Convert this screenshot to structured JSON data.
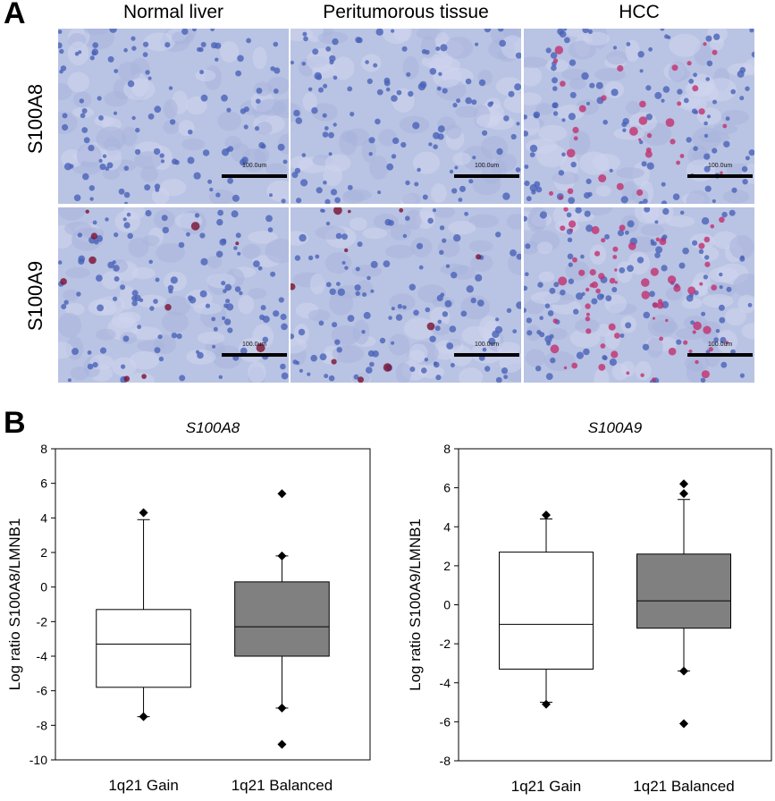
{
  "panel_a": {
    "letter": "A",
    "columns": [
      "Normal liver",
      "Peritumorous tissue",
      "HCC"
    ],
    "rows": [
      "S100A8",
      "S100A9"
    ],
    "scale_label": "100.0um",
    "stain_colors": {
      "background": "#b9c3e3",
      "nuclei": "#4a63b8",
      "positive": "#c2306e"
    }
  },
  "panel_b": {
    "letter": "B"
  },
  "chart_data": [
    {
      "type": "box",
      "title": "S100A8",
      "ylabel": "Log ratio S100A8/LMNB1",
      "ylim": [
        -10,
        8
      ],
      "yticks": [
        -10,
        -8,
        -6,
        -4,
        -2,
        0,
        2,
        4,
        6,
        8
      ],
      "categories": [
        "1q21 Gain",
        "1q21 Balanced"
      ],
      "boxes": [
        {
          "name": "1q21 Gain",
          "fill": "#ffffff",
          "whisker_low": -7.5,
          "q1": -5.8,
          "median": -3.3,
          "q3": -1.3,
          "whisker_high": 3.9,
          "outliers": [
            4.3,
            -7.5
          ]
        },
        {
          "name": "1q21 Balanced",
          "fill": "#808080",
          "whisker_low": -7.0,
          "q1": -4.0,
          "median": -2.3,
          "q3": 0.3,
          "whisker_high": 1.8,
          "outliers": [
            5.4,
            1.8,
            -7.0,
            -9.1
          ]
        }
      ],
      "grid": false
    },
    {
      "type": "box",
      "title": "S100A9",
      "ylabel": "Log ratio S100A9/LMNB1",
      "ylim": [
        -8,
        8
      ],
      "yticks": [
        -8,
        -6,
        -4,
        -2,
        0,
        2,
        4,
        6,
        8
      ],
      "categories": [
        "1q21 Gain",
        "1q21 Balanced"
      ],
      "boxes": [
        {
          "name": "1q21 Gain",
          "fill": "#ffffff",
          "whisker_low": -5.0,
          "q1": -3.3,
          "median": -1.0,
          "q3": 2.7,
          "whisker_high": 4.4,
          "outliers": [
            4.6,
            -5.1
          ]
        },
        {
          "name": "1q21 Balanced",
          "fill": "#808080",
          "whisker_low": -3.4,
          "q1": -1.2,
          "median": 0.2,
          "q3": 2.6,
          "whisker_high": 5.4,
          "outliers": [
            6.2,
            5.7,
            -3.4,
            -6.1
          ]
        }
      ],
      "grid": false
    }
  ]
}
